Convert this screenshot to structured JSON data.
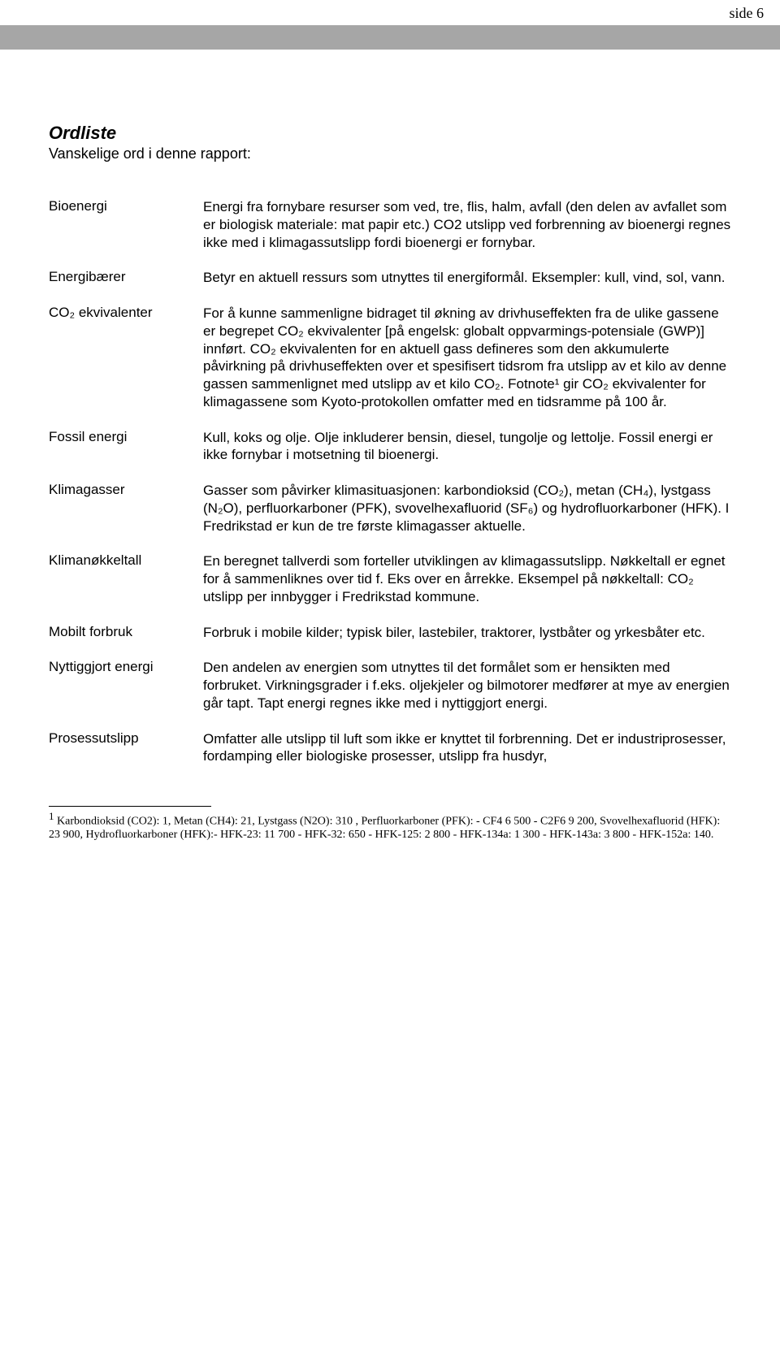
{
  "page_number_label": "side 6",
  "title": "Ordliste",
  "subtitle": "Vanskelige ord i denne rapport:",
  "definitions": [
    {
      "term": "Bioenergi",
      "def": "Energi fra fornybare resurser som ved, tre, flis, halm, avfall (den delen av avfallet som er biologisk materiale: mat papir etc.) CO2 utslipp ved forbrenning av bioenergi regnes ikke med i klimagassutslipp fordi bioenergi er fornybar."
    },
    {
      "term": "Energibærer",
      "def": "Betyr en aktuell ressurs som utnyttes til energiformål. Eksempler: kull, vind, sol, vann."
    },
    {
      "term": "CO₂ ekvivalenter",
      "def": "For å kunne sammenligne bidraget til økning av drivhuseffekten fra de ulike gassene er begrepet CO₂ ekvivalenter [på engelsk: globalt oppvarmings-potensiale (GWP)] innført. CO₂ ekvivalenten for en aktuell gass defineres som den akkumulerte påvirkning på drivhuseffekten over et spesifisert tidsrom fra utslipp av et kilo av denne gassen sammenlignet med utslipp av et kilo CO₂. Fotnote¹ gir CO₂ ekvivalenter for klimagassene som Kyoto-protokollen omfatter med en tidsramme på 100 år."
    },
    {
      "term": "Fossil energi",
      "def": "Kull, koks og olje. Olje inkluderer bensin, diesel, tungolje og lettolje. Fossil energi er ikke fornybar i motsetning til bioenergi."
    },
    {
      "term": "Klimagasser",
      "def": "Gasser som påvirker klimasituasjonen: karbondioksid (CO₂), metan (CH₄), lystgass (N₂O), perfluorkarboner (PFK), svovelhexafluorid (SF₆) og hydrofluorkarboner (HFK). I Fredrikstad er kun de tre første klimagasser aktuelle."
    },
    {
      "term": "Klimanøkkeltall",
      "def": "En beregnet tallverdi som forteller utviklingen av klimagassutslipp. Nøkkeltall er egnet for å sammenliknes over tid f. Eks over en årrekke. Eksempel på nøkkeltall: CO₂ utslipp per innbygger i Fredrikstad kommune."
    },
    {
      "term": "Mobilt forbruk",
      "def": "Forbruk i mobile kilder; typisk biler, lastebiler, traktorer, lystbåter og yrkesbåter etc."
    },
    {
      "term": "Nyttiggjort energi",
      "def": "Den andelen av energien som utnyttes til det formålet som er hensikten med forbruket. Virkningsgrader i f.eks. oljekjeler og bilmotorer medfører at mye av energien går tapt. Tapt energi regnes ikke med i nyttiggjort energi."
    },
    {
      "term": "Prosessutslipp",
      "def": "Omfatter alle utslipp til luft som ikke er knyttet til forbrenning. Det er industriprosesser, fordamping eller biologiske prosesser, utslipp fra husdyr,"
    }
  ],
  "footnote": {
    "marker": "1",
    "text": "Karbondioksid (CO2): 1, Metan (CH4): 21, Lystgass (N2O): 310 , Perfluorkarboner (PFK): - CF4 6 500 - C2F6  9 200, Svovelhexafluorid (HFK): 23 900, Hydrofluorkarboner (HFK):- HFK-23: 11 700  - HFK-32:  650 - HFK-125:  2 800 - HFK-134a: 1 300 - HFK-143a:  3 800 - HFK-152a: 140."
  },
  "colors": {
    "band": "#a6a6a6",
    "text": "#000000",
    "background": "#ffffff"
  },
  "typography": {
    "body_font": "Arial",
    "header_font": "Times New Roman",
    "title_fontsize": 22,
    "body_fontsize": 17,
    "footnote_fontsize": 14
  }
}
